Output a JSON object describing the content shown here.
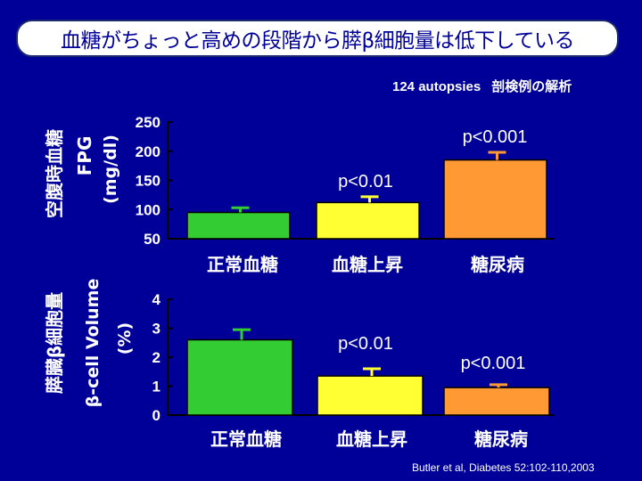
{
  "title": "血糖がちょっと高めの段階から膵β細胞量は低下している",
  "subtitle": {
    "count": "124 autopsies",
    "note": "剖検例の解析"
  },
  "citation": "Butler et al, Diabetes 52:102-110,2003",
  "colors": {
    "background": "#000099",
    "normal": "#33cc33",
    "ifg": "#ffff33",
    "diabetes": "#ff9933",
    "title_text": "#000099"
  },
  "chart_data": [
    {
      "type": "bar",
      "ylabel": [
        "空腹時血糖",
        "FPG",
        "(mg/dl)"
      ],
      "yticks": [
        "250",
        "200",
        "150",
        "100",
        "50"
      ],
      "ylim": [
        50,
        250
      ],
      "categories": [
        "正常血糖",
        "血糖上昇",
        "糖尿病"
      ],
      "values": [
        95,
        112,
        185
      ],
      "errors": [
        8,
        10,
        13
      ],
      "annotations": [
        "",
        "p<0.01",
        "p<0.001"
      ]
    },
    {
      "type": "bar",
      "ylabel": [
        "膵臓β細胞量",
        "β-cell Volume",
        "(%)"
      ],
      "yticks": [
        "4",
        "3",
        "2",
        "1",
        "0"
      ],
      "ylim": [
        0,
        4
      ],
      "categories": [
        "正常血糖",
        "血糖上昇",
        "糖尿病"
      ],
      "values": [
        2.6,
        1.35,
        0.95
      ],
      "errors": [
        0.35,
        0.25,
        0.1
      ],
      "annotations": [
        "",
        "p<0.01",
        "p<0.001"
      ]
    }
  ]
}
